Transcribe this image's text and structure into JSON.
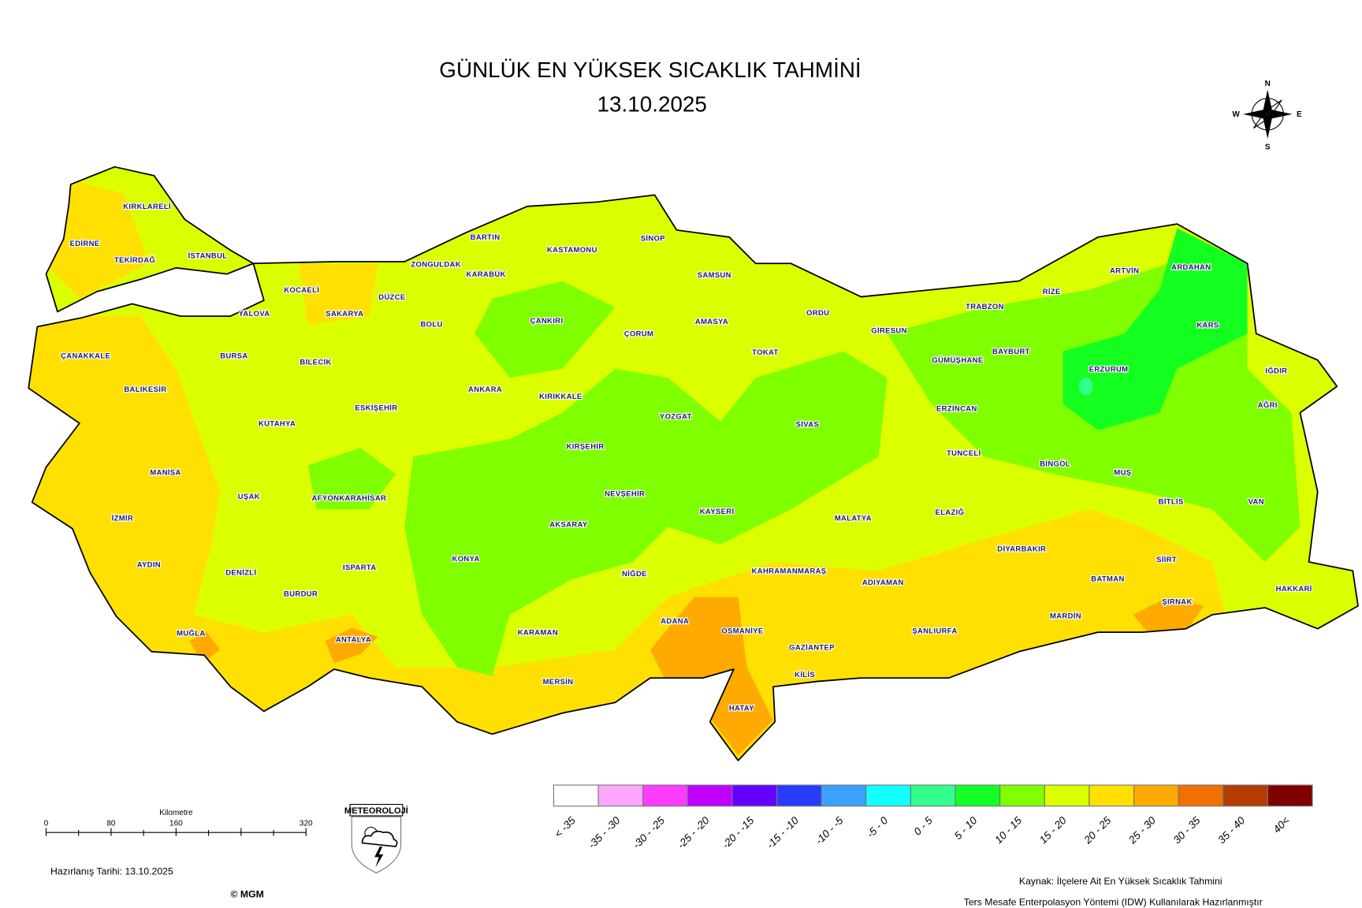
{
  "map": {
    "title": "GÜNLÜK EN YÜKSEK SICAKLIK TAHMİNİ",
    "date": "13.10.2025",
    "compass": {
      "n": "N",
      "s": "S",
      "e": "E",
      "w": "W"
    },
    "provinces": [
      "KIRKLARELİ",
      "EDİRNE",
      "TEKİRDAĞ",
      "İSTANBUL",
      "ÇANAKKALE",
      "BALIKESİR",
      "BURSA",
      "YALOVA",
      "KOCAELİ",
      "SAKARYA",
      "DÜZCE",
      "ZONGULDAK",
      "BARTIN",
      "KARABÜK",
      "KASTAMONU",
      "SİNOP",
      "SAMSUN",
      "BOLU",
      "BİLECİK",
      "ESKİŞEHİR",
      "KÜTAHYA",
      "MANİSA",
      "İZMİR",
      "AYDIN",
      "MUĞLA",
      "DENİZLİ",
      "UŞAK",
      "AFYONKARAHİSAR",
      "BURDUR",
      "ISPARTA",
      "ANTALYA",
      "KONYA",
      "KARAMAN",
      "MERSİN",
      "ANKARA",
      "ÇANKIRI",
      "KIRIKKALE",
      "KIRŞEHİR",
      "AKSARAY",
      "NEVŞEHİR",
      "NİĞDE",
      "ÇORUM",
      "AMASYA",
      "TOKAT",
      "ORDU",
      "YOZGAT",
      "KAYSERİ",
      "SİVAS",
      "ADANA",
      "OSMANİYE",
      "HATAY",
      "GAZİANTEP",
      "KİLİS",
      "KAHRAMANMARAŞ",
      "MALATYA",
      "ADIYAMAN",
      "ŞANLIURFA",
      "GİRESUN",
      "TRABZON",
      "RİZE",
      "ARTVİN",
      "ARDAHAN",
      "KARS",
      "IĞDIR",
      "GÜMÜŞHANE",
      "BAYBURT",
      "ERZURUM",
      "ERZİNCAN",
      "TUNCELİ",
      "ELAZIĞ",
      "BİNGÖL",
      "MUŞ",
      "AĞRI",
      "VAN",
      "BİTLİS",
      "SİİRT",
      "BATMAN",
      "DİYARBAKIR",
      "MARDİN",
      "ŞIRNAK",
      "HAKKARİ"
    ],
    "colors": {
      "base": "#dcff00",
      "warm": "#ffe000",
      "hot": "#ffaa00",
      "mild": "#80ff00",
      "cool": "#14ff20",
      "coolest": "#33ff90"
    }
  },
  "legend": {
    "classes": [
      {
        "label": "< -35",
        "color": "#ffffff"
      },
      {
        "label": "-35 - -30",
        "color": "#ffa6ff"
      },
      {
        "label": "-30 - -25",
        "color": "#ff3cff"
      },
      {
        "label": "-25 - -20",
        "color": "#c000ff"
      },
      {
        "label": "-20 - -15",
        "color": "#6400ff"
      },
      {
        "label": "-15 - -10",
        "color": "#283cff"
      },
      {
        "label": "-10 - -5",
        "color": "#3ca0ff"
      },
      {
        "label": "-5 - 0",
        "color": "#14ffff"
      },
      {
        "label": "0 - 5",
        "color": "#32ff8c"
      },
      {
        "label": "5 - 10",
        "color": "#14ff28"
      },
      {
        "label": "10 - 15",
        "color": "#80ff00"
      },
      {
        "label": "15 - 20",
        "color": "#dcff00"
      },
      {
        "label": "20 - 25",
        "color": "#ffe000"
      },
      {
        "label": "25 - 30",
        "color": "#ffaa00"
      },
      {
        "label": "30 - 35",
        "color": "#f07000"
      },
      {
        "label": "35 - 40",
        "color": "#b43c00"
      },
      {
        "label": "40<",
        "color": "#800000"
      }
    ]
  },
  "scale": {
    "unit": "Kilometre",
    "ticks": [
      "0",
      "80",
      "160",
      "320"
    ]
  },
  "logo": {
    "text": "METEOROLOJİ"
  },
  "footer": {
    "prepared": "Hazırlanış Tarihi:  13.10.2025",
    "copyright": "© MGM",
    "source": "Kaynak: İlçelere Ait En Yüksek Sıcaklık Tahmini",
    "method": "Ters Mesafe Enterpolasyon Yöntemi (IDW) Kullanılarak Hazırlanmıştır"
  }
}
